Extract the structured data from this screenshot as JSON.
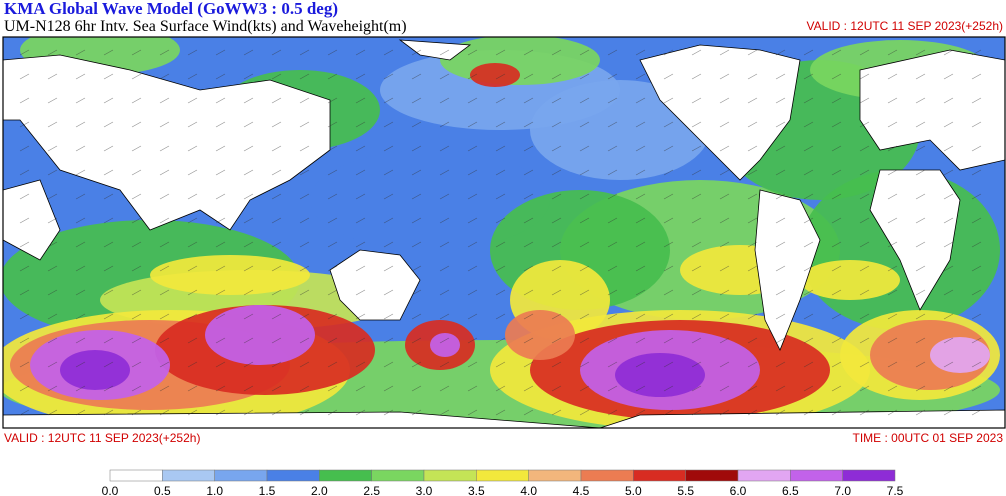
{
  "header": {
    "title": "KMA  Global Wave Model (GoWW3 : 0.5 deg)",
    "subtitle": "UM-N128  6hr Intv. Sea Surface Wind(kts) and Waveheight(m)",
    "valid_top": "VALID : 12UTC 11 SEP 2023(+252h)"
  },
  "footer": {
    "valid": "VALID : 12UTC 11 SEP 2023(+252h)",
    "time": "TIME : 00UTC 01 SEP 2023"
  },
  "colorbar": {
    "labels": [
      "0.0",
      "0.5",
      "1.0",
      "1.5",
      "2.0",
      "2.5",
      "3.0",
      "3.5",
      "4.0",
      "4.5",
      "5.0",
      "5.5",
      "6.0",
      "6.5",
      "7.0",
      "7.5"
    ],
    "colors": [
      "#ffffff",
      "#a9c8f2",
      "#78a6ee",
      "#4a80e6",
      "#46be4e",
      "#7ad660",
      "#c4e456",
      "#f2e83c",
      "#f2b67c",
      "#ec7c52",
      "#d82c22",
      "#a00a0a",
      "#e2a6f2",
      "#c262ea",
      "#8e2cd6"
    ]
  }
}
